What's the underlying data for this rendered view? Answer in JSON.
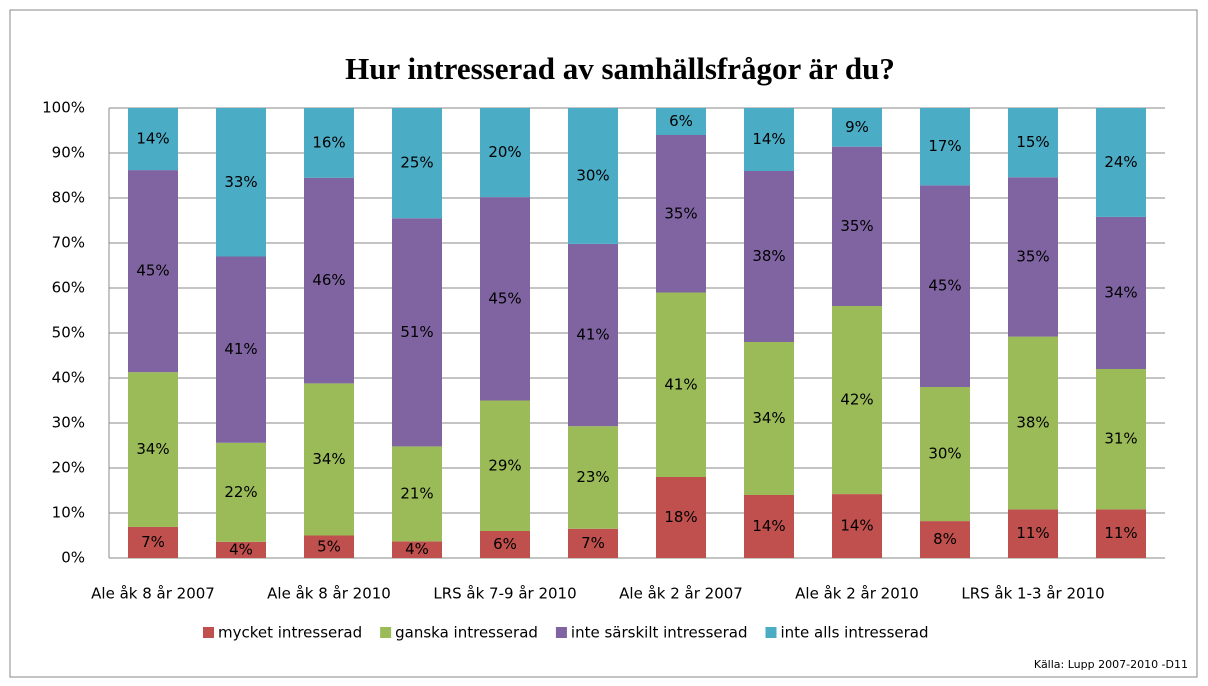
{
  "chart_data": {
    "type": "stacked_bar_100",
    "title": "Hur intresserad av samhällsfrågor är du?",
    "source": "Källa: Lupp 2007-2010 -D11",
    "categories": [
      "Ale åk 8 år 2007",
      null,
      "Ale åk 8 år 2010",
      null,
      "LRS åk 7-9 år 2010",
      null,
      "Ale åk 2 år 2007",
      null,
      "Ale åk 2 år 2010",
      null,
      "LRS åk 1-3 år 2010",
      null
    ],
    "series": [
      {
        "name": "mycket intresserad",
        "color": "#c0504d",
        "values": [
          6.9,
          3.6,
          5.0,
          3.7,
          6.0,
          6.5,
          18.0,
          14.0,
          14.2,
          8.2,
          10.8,
          10.8
        ],
        "value_labels": [
          "7%",
          "4%",
          "5%",
          "4%",
          "6%",
          "7%",
          "18%",
          "14%",
          "14%",
          "8%",
          "11%",
          "11%"
        ]
      },
      {
        "name": "ganska intresserad",
        "color": "#9bbb59",
        "values": [
          34.4,
          22.0,
          33.8,
          21.1,
          29.0,
          22.8,
          41.0,
          34.0,
          41.8,
          29.8,
          38.4,
          31.2
        ],
        "value_labels": [
          "34%",
          "22%",
          "34%",
          "21%",
          "29%",
          "23%",
          "41%",
          "34%",
          "42%",
          "30%",
          "38%",
          "31%"
        ]
      },
      {
        "name": "inte särskilt intresserad",
        "color": "#8064a2",
        "values": [
          44.9,
          41.4,
          45.7,
          50.7,
          45.2,
          40.5,
          35.0,
          38.0,
          35.4,
          44.8,
          35.4,
          33.8
        ],
        "value_labels": [
          "45%",
          "41%",
          "46%",
          "51%",
          "45%",
          "41%",
          "35%",
          "38%",
          "35%",
          "45%",
          "35%",
          "34%"
        ]
      },
      {
        "name": "inte alls intresserad",
        "color": "#4bacc6",
        "values": [
          13.8,
          33.0,
          15.5,
          24.5,
          19.8,
          30.2,
          6.0,
          14.0,
          8.6,
          17.2,
          15.4,
          24.2
        ],
        "value_labels": [
          "14%",
          "33%",
          "16%",
          "25%",
          "20%",
          "30%",
          "6%",
          "14%",
          "9%",
          "17%",
          "15%",
          "24%"
        ]
      }
    ],
    "ylim": [
      0,
      100
    ],
    "yticks": [
      {
        "value": 0,
        "label": "0%"
      },
      {
        "value": 10,
        "label": "10%"
      },
      {
        "value": 20,
        "label": "20%"
      },
      {
        "value": 30,
        "label": "30%"
      },
      {
        "value": 40,
        "label": "40%"
      },
      {
        "value": 50,
        "label": "50%"
      },
      {
        "value": 60,
        "label": "60%"
      },
      {
        "value": 70,
        "label": "70%"
      },
      {
        "value": 80,
        "label": "80%"
      },
      {
        "value": 90,
        "label": "90%"
      },
      {
        "value": 100,
        "label": "100%"
      }
    ],
    "grid": true,
    "legend": "bottom"
  }
}
